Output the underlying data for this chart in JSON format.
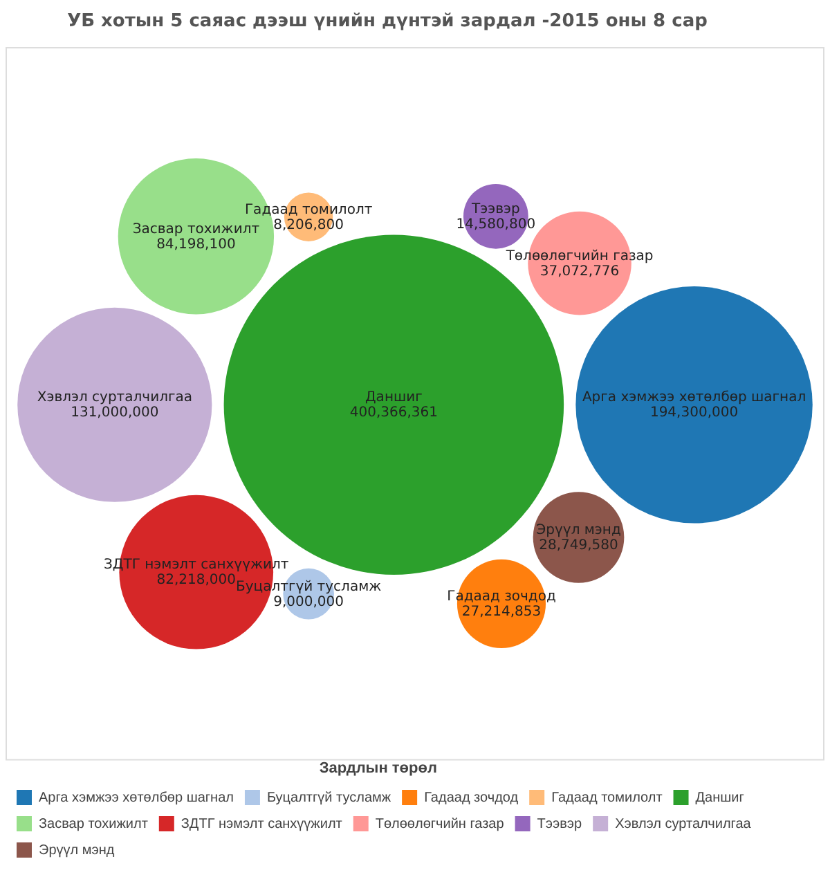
{
  "chart_data": {
    "type": "other",
    "title": "УБ хотын 5 саяас дээш үнийн дүнтэй зардал -2015 оны 8 сар",
    "legend_title": "Зардлын төрөл",
    "categories": [
      "Арга хэмжээ хөтөлбөр шагнал",
      "Буцалтгүй тусламж",
      "Гадаад зочдод",
      "Гадаад томилолт",
      "Даншиг",
      "Засвар тохижилт",
      "ЗДТГ нэмэлт санхүүжилт",
      "Төлөөлөгчийн газар",
      "Тээвэр",
      "Хэвлэл сурталчилгаа",
      "Эрүүл мэнд"
    ],
    "values": [
      194300000,
      9000000,
      27214853,
      8206800,
      400366361,
      84198100,
      82218000,
      37072776,
      14580800,
      131000000,
      28749580
    ],
    "value_labels": [
      "194,300,000",
      "9,000,000",
      "27,214,853",
      "8,206,800",
      "400,366,361",
      "84,198,100",
      "82,218,000",
      "37,072,776",
      "14,580,800",
      "131,000,000",
      "28,749,580"
    ],
    "colors": [
      "#1f77b4",
      "#aec7e8",
      "#ff7f0e",
      "#ffbb78",
      "#2ca02c",
      "#98df8a",
      "#d62728",
      "#ff9896",
      "#9467bd",
      "#c5b0d5",
      "#8c564b"
    ]
  }
}
